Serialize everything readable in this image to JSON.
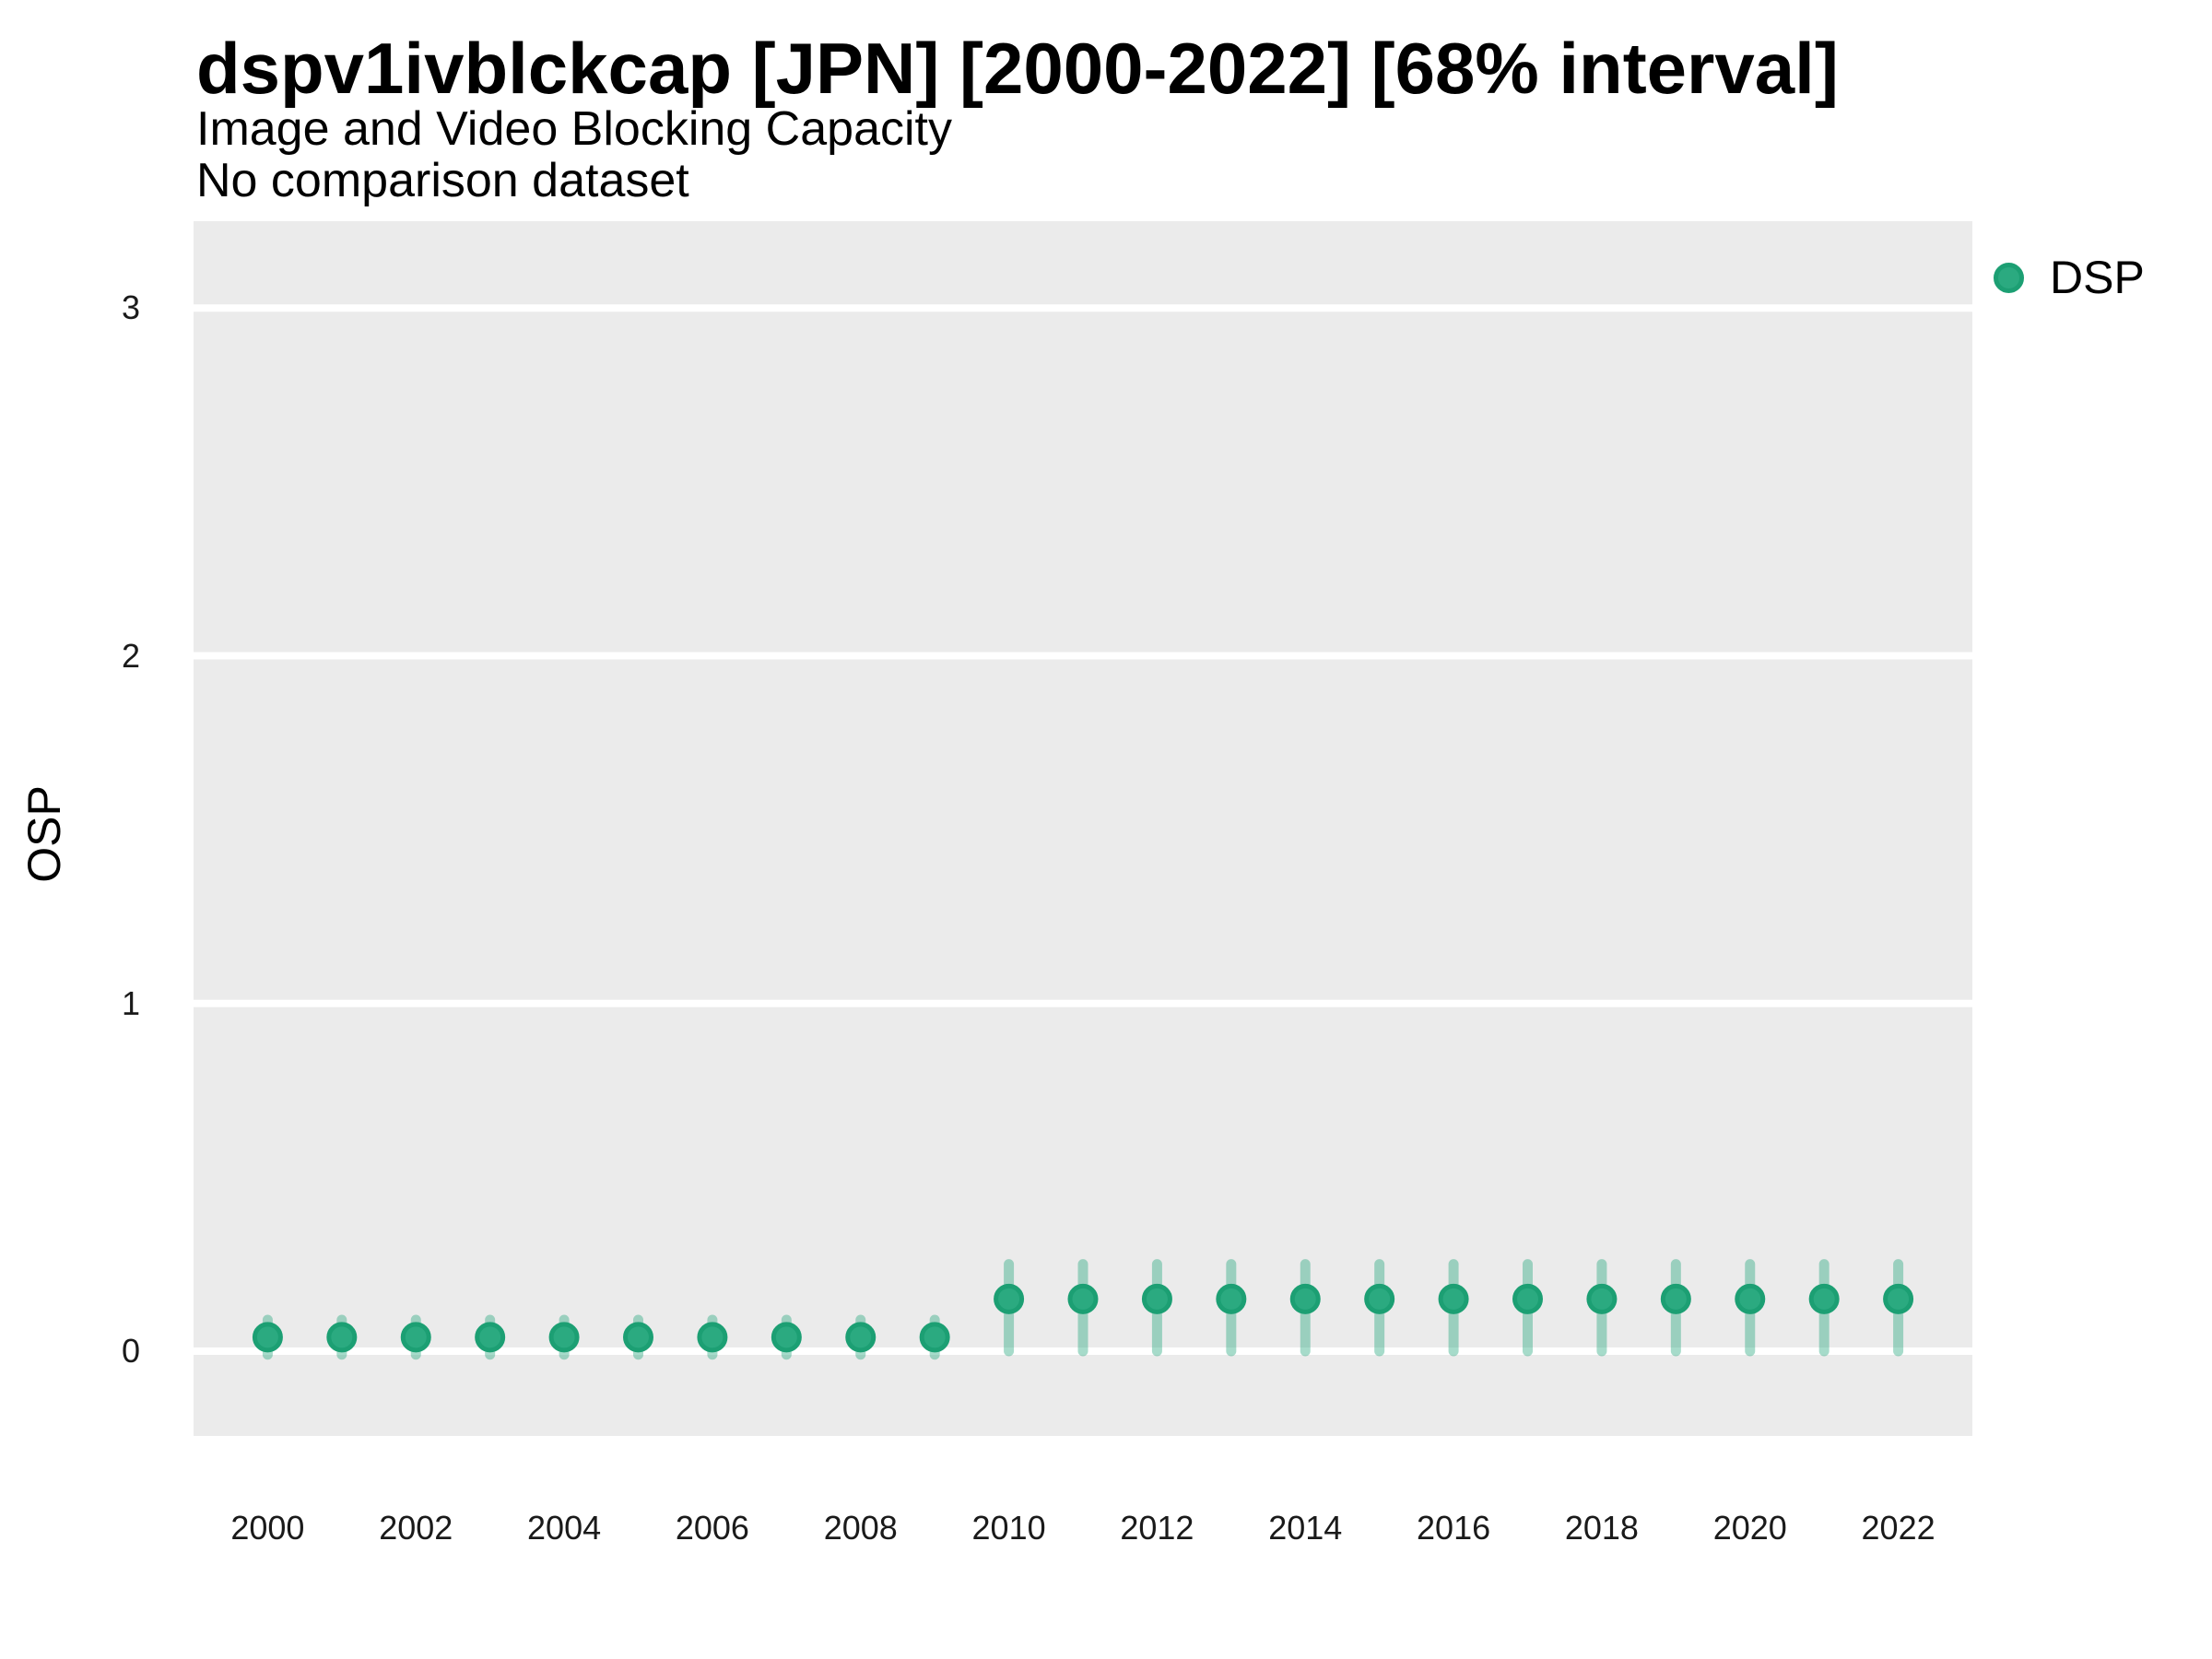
{
  "header": {
    "title": "dspv1ivblckcap [JPN] [2000-2022] [68% interval]",
    "subtitle": "Image and Video Blocking Capacity",
    "note": "No comparison dataset"
  },
  "legend": {
    "label": "DSP",
    "position": "right"
  },
  "colors": {
    "point_fill": "#2BAA80",
    "point_border": "#1C9F73",
    "interval_bar": "rgba(43,169,128,0.42)",
    "panel_background": "#EBEBEB",
    "gridline": "#FFFFFF",
    "text": "#000000",
    "tick_text": "#1A1A1A"
  },
  "chart_data": {
    "type": "scatter",
    "title": "dspv1ivblckcap [JPN] [2000-2022] [68% interval]",
    "subtitle": "Image and Video Blocking Capacity",
    "note": "No comparison dataset",
    "xlabel": "",
    "ylabel": "OSP",
    "interval_label": "68% interval",
    "grid": "major-y-only",
    "legend_position": "right",
    "xlim": [
      1999,
      2023
    ],
    "ylim": [
      -0.244,
      3.25
    ],
    "xticks": [
      2000,
      2002,
      2004,
      2006,
      2008,
      2010,
      2012,
      2014,
      2016,
      2018,
      2020,
      2022
    ],
    "yticks": [
      0,
      1,
      2,
      3
    ],
    "series": [
      {
        "name": "DSP",
        "x": [
          2000,
          2001,
          2002,
          2003,
          2004,
          2005,
          2006,
          2007,
          2008,
          2009,
          2010,
          2011,
          2012,
          2013,
          2014,
          2015,
          2016,
          2017,
          2018,
          2019,
          2020,
          2021,
          2022
        ],
        "y": [
          0.04,
          0.04,
          0.04,
          0.04,
          0.04,
          0.04,
          0.04,
          0.04,
          0.04,
          0.04,
          0.15,
          0.15,
          0.15,
          0.15,
          0.15,
          0.15,
          0.15,
          0.15,
          0.15,
          0.15,
          0.15,
          0.15,
          0.15
        ],
        "y_lower": [
          -0.01,
          -0.01,
          -0.01,
          -0.01,
          -0.01,
          -0.01,
          -0.01,
          -0.01,
          -0.01,
          -0.01,
          0.0,
          0.0,
          0.0,
          0.0,
          0.0,
          0.0,
          0.0,
          0.0,
          0.0,
          0.0,
          0.0,
          0.0,
          0.0
        ],
        "y_upper": [
          0.09,
          0.09,
          0.09,
          0.09,
          0.09,
          0.09,
          0.09,
          0.09,
          0.09,
          0.09,
          0.25,
          0.25,
          0.25,
          0.25,
          0.25,
          0.25,
          0.25,
          0.25,
          0.25,
          0.25,
          0.25,
          0.25,
          0.25
        ]
      }
    ]
  }
}
